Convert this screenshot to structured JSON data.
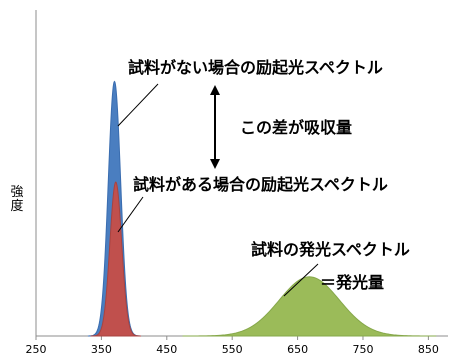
{
  "chart_data": {
    "type": "area",
    "title": "",
    "xlabel": "",
    "ylabel": "強度",
    "xlim": [
      250,
      880
    ],
    "x_ticks": [
      "250",
      "350",
      "450",
      "550",
      "650",
      "750",
      "850"
    ],
    "grid": false,
    "series": [
      {
        "name": "試料がない場合の励起光スペクトル",
        "color": "#4a7ec0",
        "edge_color": "#3a6db0",
        "peak_x": 370,
        "peak_value": 0.86,
        "sigma": 9.5
      },
      {
        "name": "試料がある場合の励起光スペクトル",
        "color": "#c0504d",
        "edge_color": "#a84340",
        "peak_x": 372,
        "peak_value": 0.52,
        "sigma": 9
      },
      {
        "name": "試料の発光スペクトル",
        "color": "#9bbb59",
        "edge_color": "#86a84a",
        "peak_x": 668,
        "peak_value": 0.2,
        "sigma": 46
      }
    ],
    "annotations": {
      "no_sample": "試料がない場合の励起光スペクトル",
      "diff": "この差が吸収量",
      "with_sample": "試料がある場合の励起光スペクトル",
      "emission": "試料の発光スペクトル",
      "emission_amount": "＝発光量"
    }
  }
}
